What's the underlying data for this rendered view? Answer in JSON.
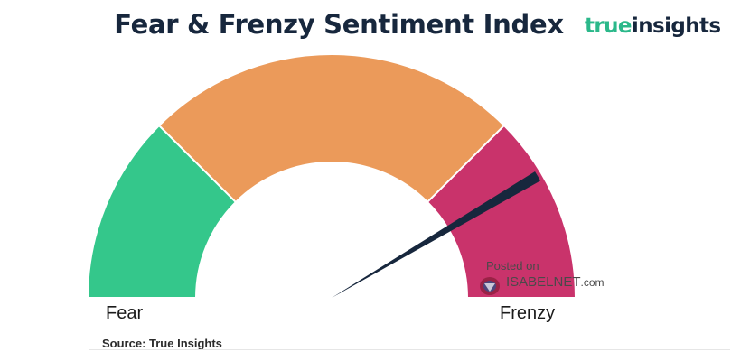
{
  "title": "Fear & Frenzy Sentiment Index",
  "brand": {
    "part1": "true",
    "part2": "insights"
  },
  "source": "Source: True Insights",
  "watermark": {
    "posted": "Posted on",
    "site": "ISABELNET",
    "domain": ".com"
  },
  "chart_data": {
    "type": "gauge",
    "min_label": "Fear",
    "max_label": "Frenzy",
    "bands": [
      {
        "from": 0,
        "to": 0.25,
        "color": "#34c78b"
      },
      {
        "from": 0.25,
        "to": 0.75,
        "color": "#eb9a5a"
      },
      {
        "from": 0.75,
        "to": 1.0,
        "color": "#c9336b"
      }
    ],
    "needle": {
      "value": 0.83,
      "color": "#17273d"
    }
  }
}
